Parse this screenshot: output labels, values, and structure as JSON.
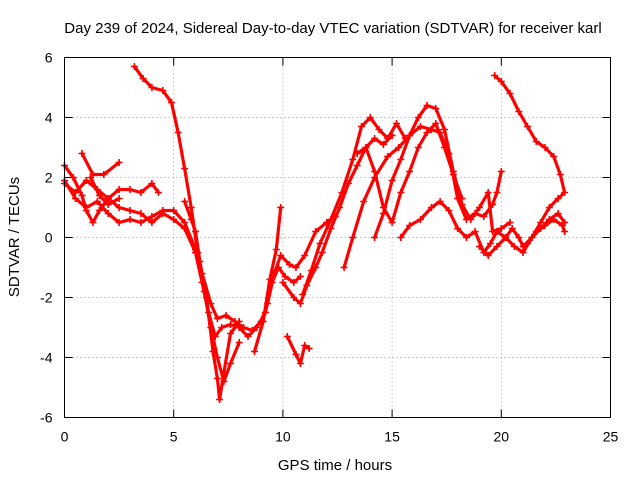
{
  "chart_data": {
    "type": "scatter",
    "title": "Day 239 of 2024, Sidereal Day-to-day VTEC variation (SDTVAR) for receiver karl",
    "xlabel": "GPS time / hours",
    "ylabel": "SDTVAR / TECUs",
    "xlim": [
      0,
      25
    ],
    "ylim": [
      -6,
      6
    ],
    "xticks": [
      "0",
      "5",
      "10",
      "15",
      "20",
      "25"
    ],
    "yticks": [
      "-6",
      "-4",
      "-2",
      "0",
      "2",
      "4",
      "6"
    ],
    "grid": true,
    "marker": "plus",
    "color": "#ff0000",
    "series": [
      {
        "points": [
          [
            0,
            2.4
          ],
          [
            0.4,
            2.0
          ],
          [
            0.8,
            1.4
          ],
          [
            1.0,
            0.9
          ],
          [
            1.3,
            0.5
          ],
          [
            1.6,
            0.9
          ],
          [
            2.0,
            1.3
          ],
          [
            2.5,
            1.0
          ],
          [
            3.0,
            0.9
          ],
          [
            3.5,
            0.8
          ],
          [
            4.0,
            0.5
          ],
          [
            4.5,
            0.8
          ],
          [
            5.0,
            0.6
          ],
          [
            5.5,
            0.3
          ],
          [
            6.0,
            -0.5
          ],
          [
            6.3,
            -1.5
          ],
          [
            6.6,
            -2.5
          ],
          [
            6.9,
            -3.3
          ],
          [
            7.2,
            -3.0
          ],
          [
            7.6,
            -2.9
          ],
          [
            8.0,
            -3.0
          ],
          [
            8.4,
            -3.3
          ],
          [
            8.8,
            -3.0
          ],
          [
            9.2,
            -2.5
          ],
          [
            9.5,
            -1.5
          ],
          [
            9.8,
            -1.0
          ],
          [
            10.1,
            -1.3
          ],
          [
            10.5,
            -1.5
          ],
          [
            10.8,
            -1.3
          ]
        ]
      },
      {
        "points": [
          [
            0,
            1.9
          ],
          [
            0.5,
            1.3
          ],
          [
            1.0,
            1.0
          ],
          [
            1.5,
            1.2
          ],
          [
            2.0,
            0.8
          ],
          [
            2.5,
            0.5
          ],
          [
            3.0,
            0.6
          ],
          [
            3.5,
            0.5
          ],
          [
            4.0,
            0.7
          ],
          [
            4.5,
            0.9
          ],
          [
            5.0,
            0.9
          ],
          [
            5.5,
            0.5
          ],
          [
            6.0,
            -0.4
          ],
          [
            6.3,
            -1.2
          ],
          [
            6.7,
            -2.2
          ],
          [
            7.0,
            -2.7
          ],
          [
            7.4,
            -2.6
          ],
          [
            7.8,
            -2.8
          ],
          [
            8.2,
            -3.0
          ],
          [
            8.6,
            -3.1
          ],
          [
            9.0,
            -2.8
          ],
          [
            9.3,
            -2.2
          ],
          [
            9.6,
            -1.2
          ],
          [
            9.9,
            -0.6
          ],
          [
            10.3,
            -0.9
          ],
          [
            10.6,
            -1.0
          ],
          [
            11.0,
            -0.6
          ],
          [
            11.5,
            0.2
          ],
          [
            12.0,
            0.5
          ],
          [
            12.4,
            0.7
          ]
        ]
      },
      {
        "points": [
          [
            0,
            1.8
          ],
          [
            0.5,
            1.5
          ],
          [
            1.0,
            1.9
          ],
          [
            1.5,
            1.6
          ],
          [
            2.0,
            1.3
          ],
          [
            2.5,
            1.6
          ],
          [
            3.0,
            1.6
          ],
          [
            3.5,
            1.5
          ],
          [
            4.0,
            1.8
          ],
          [
            4.3,
            1.5
          ]
        ]
      },
      {
        "points": [
          [
            0.8,
            2.8
          ],
          [
            1.3,
            2.1
          ],
          [
            1.8,
            2.1
          ],
          [
            2.5,
            2.5
          ]
        ]
      },
      {
        "points": [
          [
            1.2,
            2.0
          ],
          [
            1.6,
            1.4
          ],
          [
            2.0,
            1.1
          ],
          [
            2.5,
            1.3
          ]
        ]
      },
      {
        "points": [
          [
            3.2,
            5.7
          ],
          [
            3.6,
            5.3
          ],
          [
            4.0,
            5.0
          ],
          [
            4.5,
            4.9
          ],
          [
            4.9,
            4.5
          ],
          [
            5.2,
            3.5
          ],
          [
            5.5,
            2.3
          ],
          [
            5.8,
            1.0
          ],
          [
            6.1,
            -0.5
          ],
          [
            6.4,
            -1.8
          ],
          [
            6.7,
            -3.0
          ],
          [
            7.0,
            -4.0
          ],
          [
            7.3,
            -4.8
          ],
          [
            7.6,
            -4.2
          ],
          [
            8.0,
            -3.5
          ]
        ]
      },
      {
        "points": [
          [
            5.5,
            1.2
          ],
          [
            5.8,
            0.6
          ],
          [
            6.0,
            0.2
          ],
          [
            6.2,
            -0.8
          ],
          [
            6.5,
            -2.0
          ],
          [
            6.8,
            -3.8
          ],
          [
            7.0,
            -4.7
          ],
          [
            7.1,
            -5.4
          ],
          [
            7.3,
            -4.5
          ],
          [
            7.6,
            -3.2
          ],
          [
            8.0,
            -2.8
          ]
        ]
      },
      {
        "points": [
          [
            8.7,
            -3.8
          ],
          [
            9.1,
            -2.8
          ],
          [
            9.4,
            -1.4
          ],
          [
            9.7,
            -0.4
          ],
          [
            9.9,
            1.0
          ]
        ]
      },
      {
        "points": [
          [
            10.0,
            -1.5
          ],
          [
            10.5,
            -2.0
          ],
          [
            10.8,
            -2.2
          ],
          [
            11.1,
            -1.6
          ],
          [
            11.5,
            -1.0
          ],
          [
            11.8,
            -0.5
          ],
          [
            12.2,
            0.3
          ],
          [
            12.6,
            1.0
          ],
          [
            13.0,
            1.8
          ],
          [
            13.4,
            2.4
          ],
          [
            13.8,
            3.0
          ],
          [
            14.2,
            3.3
          ],
          [
            14.6,
            3.1
          ],
          [
            15.0,
            3.4
          ]
        ]
      },
      {
        "points": [
          [
            10.9,
            -1.9
          ],
          [
            11.3,
            -1.1
          ],
          [
            11.7,
            -0.2
          ],
          [
            12.2,
            0.6
          ],
          [
            12.7,
            1.5
          ],
          [
            13.2,
            2.6
          ],
          [
            13.6,
            3.7
          ],
          [
            14.0,
            4.0
          ],
          [
            14.4,
            3.6
          ],
          [
            14.8,
            3.3
          ],
          [
            15.2,
            3.8
          ],
          [
            15.6,
            3.3
          ]
        ]
      },
      {
        "points": [
          [
            10.2,
            -3.3
          ],
          [
            10.6,
            -3.9
          ],
          [
            10.8,
            -4.2
          ],
          [
            11.0,
            -3.6
          ],
          [
            11.2,
            -3.7
          ]
        ]
      },
      {
        "points": [
          [
            12.8,
            -1.0
          ],
          [
            13.2,
            0.0
          ],
          [
            13.7,
            1.2
          ],
          [
            14.2,
            2.0
          ],
          [
            14.8,
            2.7
          ],
          [
            15.3,
            3.0
          ],
          [
            15.8,
            3.4
          ],
          [
            16.3,
            3.7
          ],
          [
            16.8,
            3.6
          ],
          [
            17.2,
            3.5
          ],
          [
            17.6,
            2.8
          ],
          [
            18.0,
            1.3
          ],
          [
            18.4,
            0.6
          ],
          [
            18.8,
            0.8
          ],
          [
            19.2,
            0.7
          ],
          [
            19.6,
            1.1
          ],
          [
            19.8,
            1.5
          ],
          [
            20.0,
            2.2
          ]
        ]
      },
      {
        "points": [
          [
            13.4,
            2.8
          ],
          [
            13.8,
            3.0
          ],
          [
            14.2,
            2.2
          ],
          [
            14.6,
            1.0
          ],
          [
            15.0,
            0.5
          ],
          [
            15.4,
            1.5
          ],
          [
            15.8,
            2.2
          ],
          [
            16.2,
            3.0
          ],
          [
            16.6,
            3.5
          ],
          [
            17.0,
            3.8
          ],
          [
            17.4,
            3.0
          ],
          [
            17.8,
            2.1
          ],
          [
            18.2,
            1.3
          ]
        ]
      },
      {
        "points": [
          [
            14.2,
            0.0
          ],
          [
            14.6,
            0.8
          ],
          [
            15.0,
            1.9
          ],
          [
            15.4,
            2.6
          ],
          [
            15.8,
            3.4
          ],
          [
            16.2,
            4.0
          ],
          [
            16.6,
            4.4
          ],
          [
            17.0,
            4.3
          ],
          [
            17.4,
            3.6
          ],
          [
            17.8,
            2.2
          ],
          [
            18.2,
            1.1
          ],
          [
            18.6,
            0.6
          ],
          [
            19.0,
            1.0
          ],
          [
            19.4,
            1.5
          ],
          [
            19.6,
            0.2
          ],
          [
            20.0,
            0.3
          ],
          [
            20.4,
            0.5
          ]
        ]
      },
      {
        "points": [
          [
            15.4,
            0.0
          ],
          [
            15.8,
            0.4
          ],
          [
            16.3,
            0.6
          ],
          [
            16.8,
            1.0
          ],
          [
            17.2,
            1.2
          ],
          [
            17.6,
            0.9
          ],
          [
            18.0,
            0.3
          ],
          [
            18.4,
            0.0
          ],
          [
            18.8,
            0.2
          ],
          [
            19.2,
            -0.5
          ],
          [
            19.5,
            -0.2
          ],
          [
            19.8,
            0.2
          ],
          [
            20.2,
            0.0
          ],
          [
            20.6,
            -0.3
          ],
          [
            21.0,
            -0.5
          ],
          [
            21.4,
            0.0
          ],
          [
            21.8,
            0.3
          ],
          [
            22.2,
            0.6
          ],
          [
            22.6,
            0.8
          ],
          [
            22.9,
            0.5
          ]
        ]
      },
      {
        "points": [
          [
            19.7,
            5.4
          ],
          [
            20.0,
            5.2
          ],
          [
            20.4,
            4.8
          ],
          [
            20.8,
            4.2
          ],
          [
            21.2,
            3.7
          ],
          [
            21.6,
            3.2
          ],
          [
            22.0,
            3.0
          ],
          [
            22.4,
            2.7
          ],
          [
            22.7,
            2.1
          ],
          [
            22.9,
            1.5
          ],
          [
            22.6,
            1.3
          ],
          [
            22.2,
            1.0
          ],
          [
            21.8,
            0.5
          ],
          [
            21.4,
            0.0
          ],
          [
            21.0,
            -0.3
          ],
          [
            20.8,
            0.0
          ],
          [
            20.5,
            0.3
          ],
          [
            20.2,
            0.0
          ],
          [
            19.8,
            -0.3
          ],
          [
            19.4,
            -0.6
          ],
          [
            19.0,
            -0.3
          ]
        ]
      },
      {
        "points": [
          [
            21.2,
            -0.2
          ],
          [
            21.6,
            0.2
          ],
          [
            22.0,
            0.4
          ],
          [
            22.4,
            0.6
          ],
          [
            22.8,
            0.4
          ],
          [
            22.9,
            0.2
          ]
        ]
      }
    ]
  }
}
